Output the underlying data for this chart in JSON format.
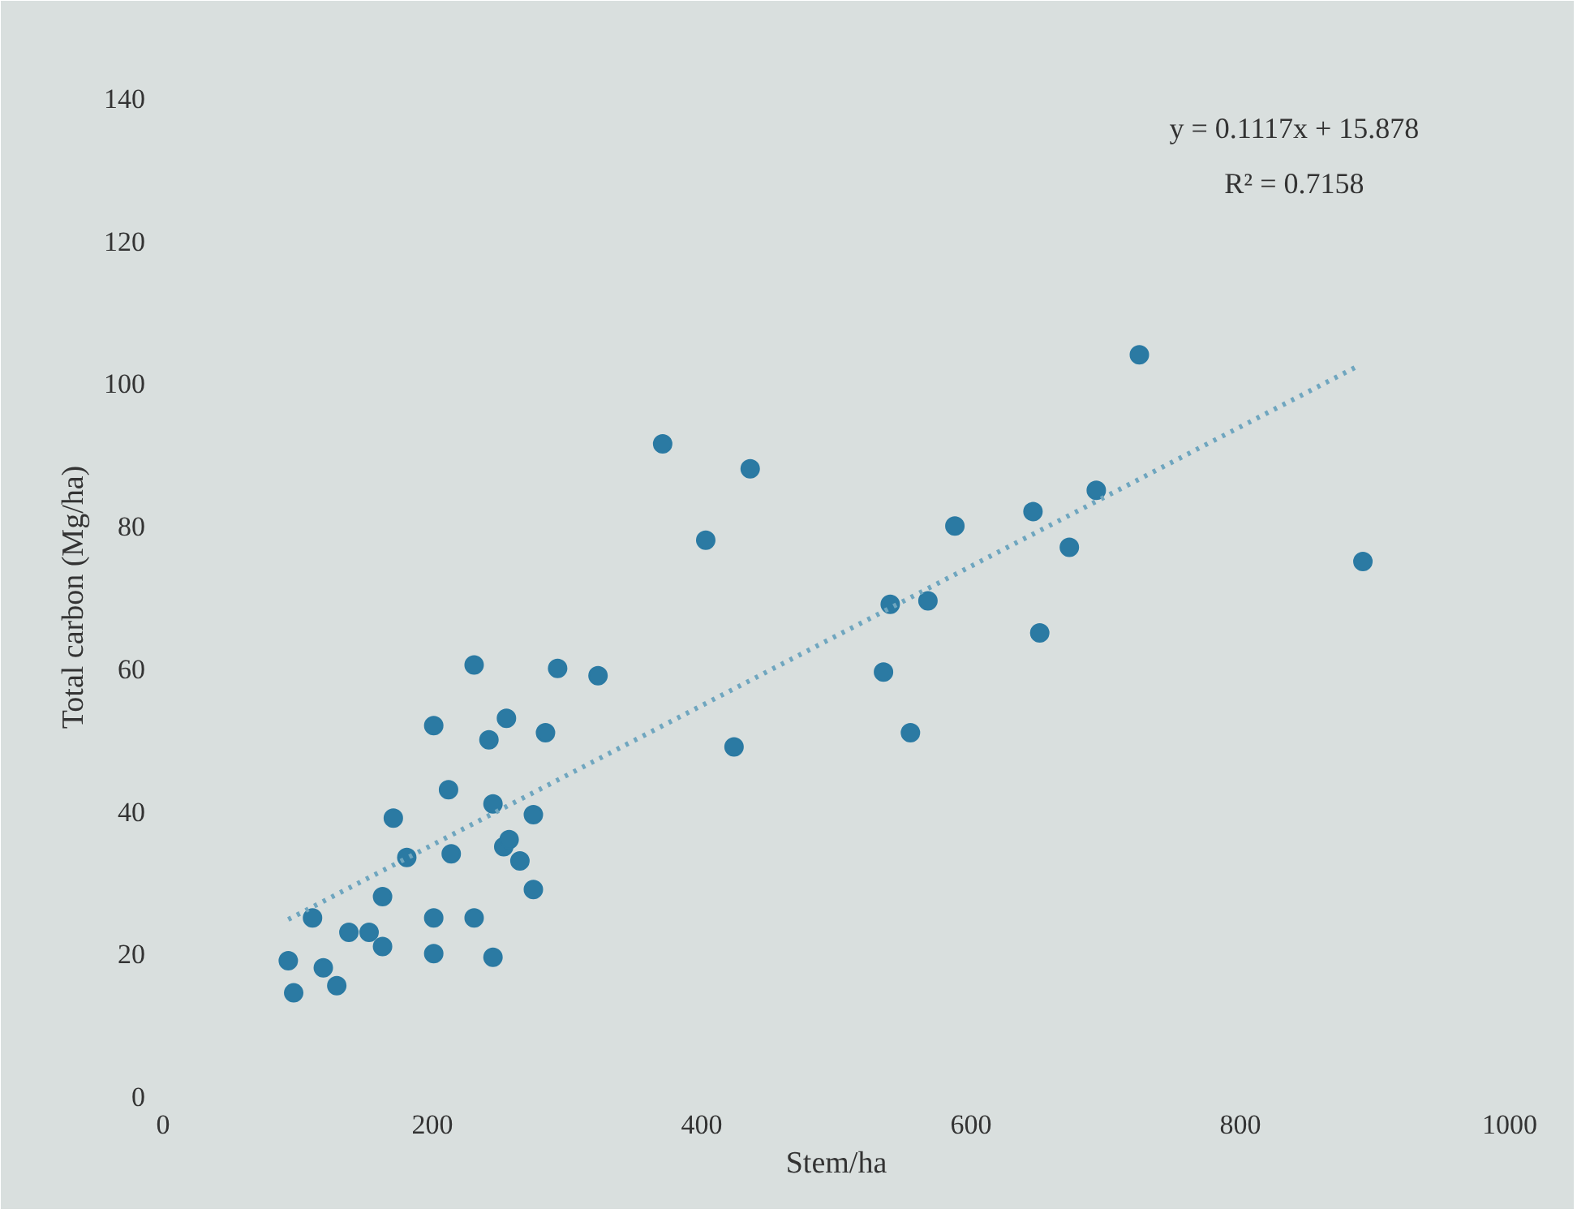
{
  "chart_data": {
    "type": "scatter",
    "xlabel": "Stem/ha",
    "ylabel": "Total carbon (Mg/ha)",
    "annotations": [
      "y = 0.1117x + 15.878",
      "R² = 0.7158"
    ],
    "xlim": [
      0,
      1000
    ],
    "ylim": [
      0,
      140
    ],
    "xticks": [
      0,
      200,
      400,
      600,
      800,
      1000
    ],
    "yticks": [
      0,
      20,
      40,
      60,
      80,
      100,
      120,
      140
    ],
    "grid": false,
    "series": [
      {
        "marker": "circle",
        "color": "#2b7aa3",
        "x": [
          93,
          97,
          111,
          119,
          129,
          138,
          153,
          163,
          163,
          171,
          181,
          201,
          201,
          201,
          212,
          214,
          231,
          231,
          242,
          245,
          245,
          255,
          253,
          257,
          265,
          275,
          275,
          284,
          293,
          323,
          371,
          403,
          424,
          436,
          535,
          540,
          555,
          568,
          588,
          646,
          651,
          673,
          693,
          725,
          891
        ],
        "values": [
          19,
          14.5,
          25,
          18,
          15.5,
          23,
          23,
          21,
          28,
          39,
          33.5,
          52,
          25,
          20,
          43,
          34,
          60.5,
          25,
          50,
          41,
          19.5,
          53,
          35,
          36,
          33,
          39.5,
          29,
          51,
          60,
          59,
          91.5,
          78,
          49,
          88,
          59.5,
          69,
          51,
          69.5,
          80,
          82,
          65,
          77,
          85,
          104,
          75
        ]
      },
      {
        "type": "line",
        "color": "#6fa6bf",
        "line_style": "dotted",
        "x": [
          93,
          888
        ],
        "values": [
          24.8,
          102.5
        ]
      }
    ]
  }
}
